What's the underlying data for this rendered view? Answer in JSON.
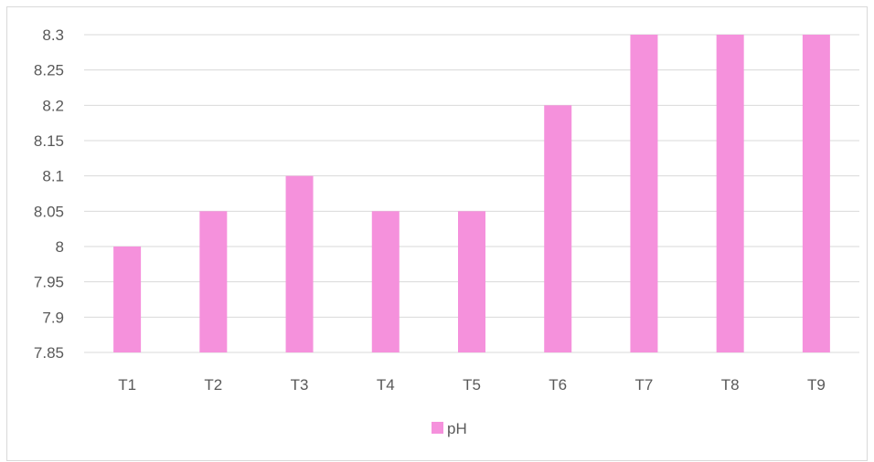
{
  "chart_data": {
    "type": "bar",
    "categories": [
      "T1",
      "T2",
      "T3",
      "T4",
      "T5",
      "T6",
      "T7",
      "T8",
      "T9"
    ],
    "series": [
      {
        "name": "pH",
        "values": [
          8.0,
          8.05,
          8.1,
          8.05,
          8.05,
          8.2,
          8.3,
          8.3,
          8.3
        ],
        "color": "#f591dc"
      }
    ],
    "title": "",
    "xlabel": "",
    "ylabel": "",
    "ylim": [
      7.85,
      8.3
    ],
    "yticks": [
      "7.85",
      "7.9",
      "7.95",
      "8",
      "8.05",
      "8.1",
      "8.15",
      "8.2",
      "8.25",
      "8.3"
    ],
    "grid": true,
    "legend": "bottom"
  },
  "colors": {
    "gridline": "#d9d9d9",
    "text": "#595959"
  }
}
